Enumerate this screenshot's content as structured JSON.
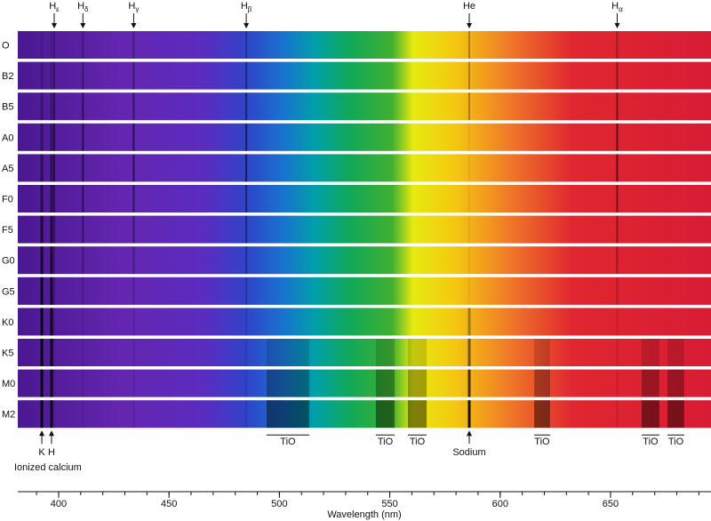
{
  "spectral_types": [
    "O",
    "B2",
    "B5",
    "A0",
    "A5",
    "F0",
    "F5",
    "G0",
    "G5",
    "K0",
    "K5",
    "M0",
    "M2"
  ],
  "top_lines": [
    {
      "symbol": "H",
      "sub": "ε",
      "wavelength": 398
    },
    {
      "symbol": "H",
      "sub": "δ",
      "wavelength": 411
    },
    {
      "symbol": "H",
      "sub": "γ",
      "wavelength": 434
    },
    {
      "symbol": "H",
      "sub": "β",
      "wavelength": 485
    },
    {
      "symbol": "He",
      "wavelength": 586
    },
    {
      "symbol": "H",
      "sub": "α",
      "wavelength": 653
    }
  ],
  "calcium": {
    "lines": [
      {
        "label": "K",
        "wavelength": 392.4
      },
      {
        "label": "H",
        "wavelength": 396.8
      }
    ],
    "label": "Ionized calcium"
  },
  "sodium": {
    "label": "Sodium",
    "wavelength": 586
  },
  "tio_bands": [
    {
      "label": "TiO",
      "range": [
        494.2,
        513.5
      ]
    },
    {
      "label": "TiO",
      "range": [
        543.7,
        552.2
      ]
    },
    {
      "label": "TiO",
      "range": [
        558.2,
        566.7
      ]
    },
    {
      "label": "TiO",
      "range": [
        615.4,
        622.6
      ]
    },
    {
      "label": "TiO",
      "range": [
        664.1,
        672.1
      ]
    },
    {
      "label": "TiO",
      "range": [
        675.8,
        683.4
      ]
    }
  ],
  "axis": {
    "label": "Wavelength (nm)",
    "xlim": [
      381.5,
      695.5
    ],
    "xticks": [
      400,
      450,
      500,
      550,
      600,
      650
    ],
    "minor_ticks": [
      390,
      400,
      410,
      420,
      430,
      440,
      450,
      460,
      470,
      480,
      490,
      500,
      510,
      520,
      530,
      540,
      550,
      560,
      570,
      580,
      590,
      600,
      610,
      620,
      630,
      640,
      650,
      660,
      670,
      680,
      690
    ]
  }
}
